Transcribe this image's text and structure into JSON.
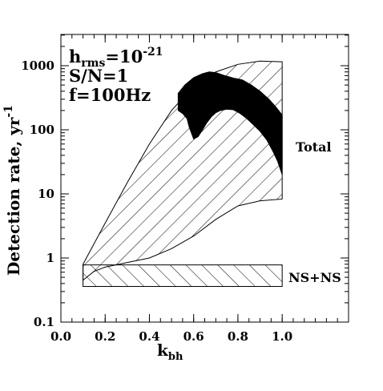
{
  "chart_data": {
    "type": "area",
    "xlabel": "k",
    "xlabel_sub": "bh",
    "ylabel": "Detection rate, yr",
    "ylabel_sup": "-1",
    "xlim": [
      0.0,
      1.3
    ],
    "ylim": [
      0.1,
      2000
    ],
    "y_scale": "log",
    "grid": false,
    "x_ticks": [
      {
        "value": 0.0,
        "label": "0.0"
      },
      {
        "value": 0.2,
        "label": "0.2"
      },
      {
        "value": 0.4,
        "label": "0.4"
      },
      {
        "value": 0.6,
        "label": "0.6"
      },
      {
        "value": 0.8,
        "label": "0.8"
      },
      {
        "value": 1.0,
        "label": "1.0"
      }
    ],
    "y_ticks": [
      {
        "value": 0.1,
        "label": "0.1"
      },
      {
        "value": 1,
        "label": "1"
      },
      {
        "value": 10,
        "label": "10"
      },
      {
        "value": 100,
        "label": "100"
      },
      {
        "value": 1000,
        "label": "1000"
      }
    ],
    "annotation": {
      "line1": "h",
      "line1_sub": "rms",
      "line1_rest": "=10",
      "line1_sup": "-21",
      "line2": "S/N=1",
      "line3": "f=100Hz"
    },
    "regions": [
      {
        "name": "Total",
        "fill": "hatch-diagonal-up",
        "upper": [
          [
            0.1,
            0.8
          ],
          [
            0.2,
            3.5
          ],
          [
            0.3,
            15
          ],
          [
            0.4,
            60
          ],
          [
            0.5,
            200
          ],
          [
            0.6,
            480
          ],
          [
            0.7,
            800
          ],
          [
            0.8,
            1050
          ],
          [
            0.9,
            1180
          ],
          [
            1.0,
            1150
          ]
        ],
        "lower": [
          [
            0.1,
            0.45
          ],
          [
            0.15,
            0.62
          ],
          [
            0.2,
            0.72
          ],
          [
            0.3,
            0.85
          ],
          [
            0.4,
            1.0
          ],
          [
            0.5,
            1.4
          ],
          [
            0.6,
            2.2
          ],
          [
            0.7,
            4.0
          ],
          [
            0.8,
            6.5
          ],
          [
            0.9,
            7.8
          ],
          [
            1.0,
            8.3
          ]
        ]
      },
      {
        "name": "NS+NS",
        "fill": "hatch-diagonal-down",
        "x_range": [
          0.1,
          1.0
        ],
        "y_range": [
          0.36,
          0.78
        ]
      }
    ],
    "black_region": {
      "upper": [
        [
          0.53,
          370
        ],
        [
          0.56,
          500
        ],
        [
          0.6,
          650
        ],
        [
          0.64,
          750
        ],
        [
          0.67,
          800
        ],
        [
          0.7,
          780
        ],
        [
          0.74,
          700
        ],
        [
          0.78,
          640
        ],
        [
          0.82,
          600
        ],
        [
          0.86,
          500
        ],
        [
          0.9,
          400
        ],
        [
          0.94,
          300
        ],
        [
          0.97,
          230
        ],
        [
          1.0,
          170
        ]
      ],
      "lower": [
        [
          0.53,
          200
        ],
        [
          0.55,
          180
        ],
        [
          0.57,
          150
        ],
        [
          0.58,
          110
        ],
        [
          0.6,
          72
        ],
        [
          0.62,
          78
        ],
        [
          0.64,
          100
        ],
        [
          0.66,
          130
        ],
        [
          0.68,
          160
        ],
        [
          0.7,
          185
        ],
        [
          0.72,
          200
        ],
        [
          0.75,
          210
        ],
        [
          0.78,
          205
        ],
        [
          0.81,
          180
        ],
        [
          0.84,
          150
        ],
        [
          0.87,
          120
        ],
        [
          0.9,
          95
        ],
        [
          0.93,
          70
        ],
        [
          0.96,
          45
        ],
        [
          0.98,
          32
        ],
        [
          1.0,
          20
        ]
      ]
    }
  }
}
